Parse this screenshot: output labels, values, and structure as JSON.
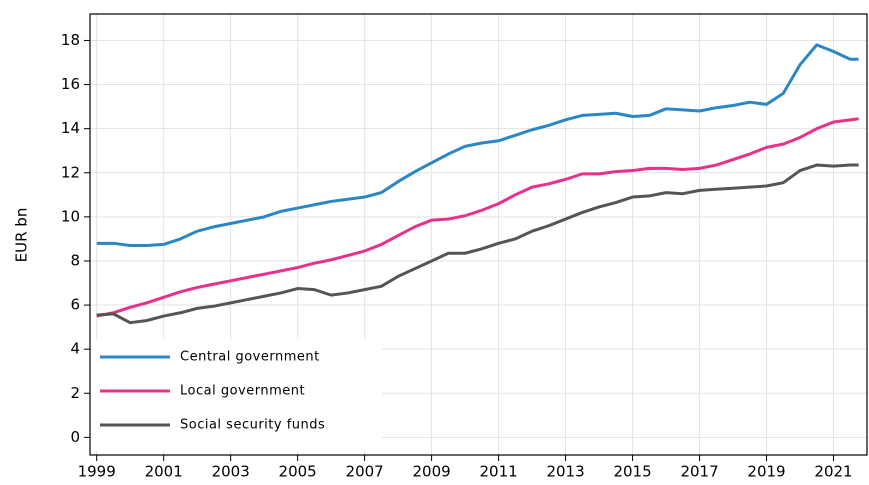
{
  "chart_data": {
    "type": "line",
    "ylabel": "EUR bn",
    "x": [
      1999,
      1999.5,
      2000,
      2000.5,
      2001,
      2001.5,
      2002,
      2002.5,
      2003,
      2003.5,
      2004,
      2004.5,
      2005,
      2005.5,
      2006,
      2006.5,
      2007,
      2007.5,
      2008,
      2008.5,
      2009,
      2009.5,
      2010,
      2010.5,
      2011,
      2011.5,
      2012,
      2012.5,
      2013,
      2013.5,
      2014,
      2014.5,
      2015,
      2015.5,
      2016,
      2016.5,
      2017,
      2017.5,
      2018,
      2018.5,
      2019,
      2019.5,
      2020,
      2020.5,
      2021,
      2021.5,
      2021.75
    ],
    "series": [
      {
        "name": "Central government",
        "color": "#2a86c5",
        "values": [
          8.8,
          8.8,
          8.7,
          8.7,
          8.75,
          9.0,
          9.35,
          9.55,
          9.7,
          9.85,
          10.0,
          10.25,
          10.4,
          10.55,
          10.7,
          10.8,
          10.9,
          11.1,
          11.6,
          12.05,
          12.45,
          12.85,
          13.2,
          13.35,
          13.45,
          13.7,
          13.95,
          14.15,
          14.4,
          14.6,
          14.65,
          14.7,
          14.55,
          14.6,
          14.9,
          14.85,
          14.8,
          14.95,
          15.05,
          15.2,
          15.1,
          15.6,
          16.9,
          17.8,
          17.5,
          17.15,
          17.15
        ]
      },
      {
        "name": "Local government",
        "color": "#e8318a",
        "values": [
          5.5,
          5.65,
          5.9,
          6.1,
          6.35,
          6.6,
          6.8,
          6.95,
          7.1,
          7.25,
          7.4,
          7.55,
          7.7,
          7.9,
          8.05,
          8.25,
          8.45,
          8.75,
          9.15,
          9.55,
          9.85,
          9.9,
          10.05,
          10.3,
          10.6,
          11.0,
          11.35,
          11.5,
          11.7,
          11.95,
          11.95,
          12.05,
          12.1,
          12.2,
          12.2,
          12.15,
          12.2,
          12.35,
          12.6,
          12.85,
          13.15,
          13.3,
          13.6,
          14.0,
          14.3,
          14.4,
          14.45
        ]
      },
      {
        "name": "Social security funds",
        "color": "#555555",
        "values": [
          5.55,
          5.6,
          5.2,
          5.3,
          5.5,
          5.65,
          5.85,
          5.95,
          6.1,
          6.25,
          6.4,
          6.55,
          6.75,
          6.7,
          6.45,
          6.55,
          6.7,
          6.85,
          7.3,
          7.65,
          8.0,
          8.35,
          8.35,
          8.55,
          8.8,
          9.0,
          9.35,
          9.6,
          9.9,
          10.2,
          10.45,
          10.65,
          10.9,
          10.95,
          11.1,
          11.05,
          11.2,
          11.25,
          11.3,
          11.35,
          11.4,
          11.55,
          12.1,
          12.35,
          12.3,
          12.35,
          12.35
        ]
      }
    ],
    "xlim": [
      1998.8,
      2022.0
    ],
    "xticks": [
      1999,
      2001,
      2003,
      2005,
      2007,
      2009,
      2011,
      2013,
      2015,
      2017,
      2019,
      2021
    ],
    "ylim": [
      -0.8,
      19.2
    ],
    "yticks": [
      0,
      2,
      4,
      6,
      8,
      10,
      12,
      14,
      16,
      18
    ],
    "grid": true,
    "legend": "lower left"
  }
}
